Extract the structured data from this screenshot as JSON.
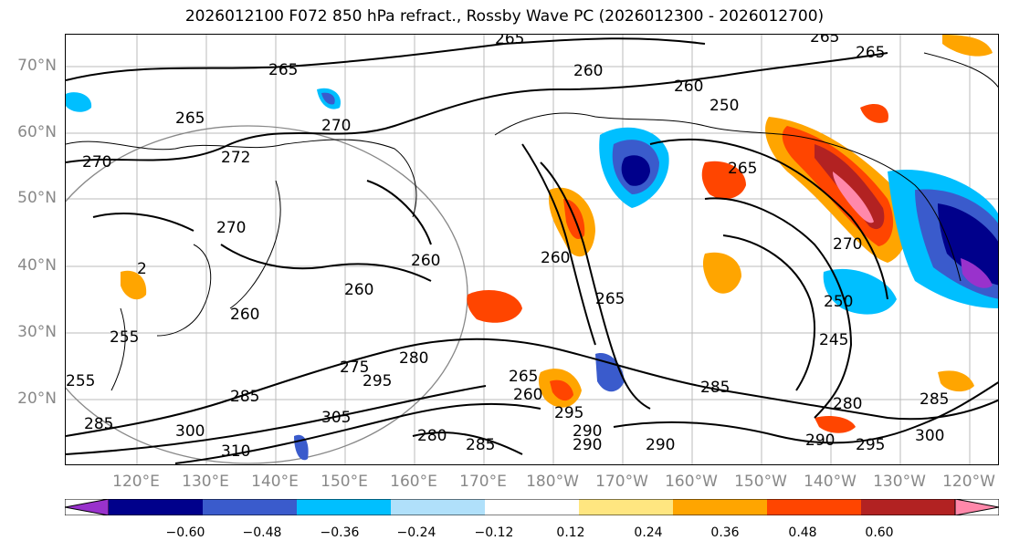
{
  "title": "2026012100 F072 850 hPa refract., Rossby Wave PC (2026012300 - 2026012700)",
  "lat_labels": [
    "70°N",
    "60°N",
    "50°N",
    "40°N",
    "30°N",
    "20°N"
  ],
  "lon_labels": [
    "120°E",
    "130°E",
    "140°E",
    "150°E",
    "160°E",
    "170°E",
    "180°W",
    "170°W",
    "160°W",
    "150°W",
    "140°W",
    "130°W",
    "120°W"
  ],
  "contour_labels": [
    "265",
    "265",
    "265",
    "260",
    "260",
    "250",
    "265",
    "270",
    "270",
    "265",
    "272",
    "260",
    "270",
    "260",
    "2",
    "265",
    "260",
    "255",
    "255",
    "295",
    "280",
    "265",
    "260",
    "295",
    "290",
    "285",
    "285",
    "290",
    "280",
    "285",
    "275",
    "285",
    "300",
    "310",
    "305",
    "285",
    "280",
    "295",
    "300",
    "290",
    "290",
    "250",
    "245",
    "270",
    "260",
    "265"
  ],
  "colorbar": {
    "ticks": [
      "−0.60",
      "−0.48",
      "−0.36",
      "−0.24",
      "−0.12",
      "0.12",
      "0.24",
      "0.36",
      "0.48",
      "0.60"
    ],
    "colors": [
      "#9932cc",
      "#00008b",
      "#3a5bcc",
      "#00bfff",
      "#b0e0fa",
      "#ffffff",
      "#ffe680",
      "#ffa500",
      "#ff4500",
      "#b22222",
      "#ff88aa"
    ]
  }
}
